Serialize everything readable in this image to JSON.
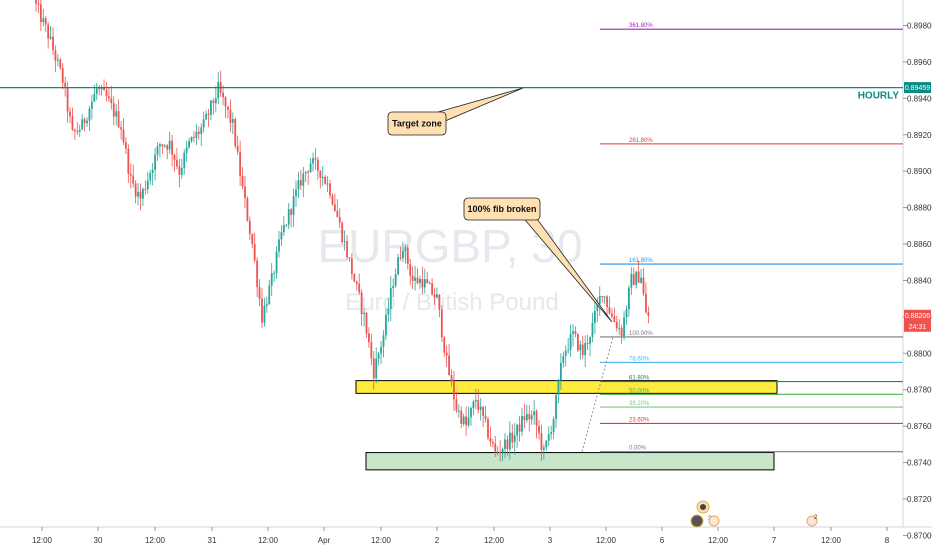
{
  "symbol_watermark": "EURGBP, 30",
  "description_watermark": "Euro / British Pound",
  "colors": {
    "up": "#26a69a",
    "down": "#ef5350",
    "resistance": "#0a8a85",
    "fib_3618": "#9c27b0",
    "fib_2618": "#e53935",
    "fib_1618": "#2196f3",
    "fib_100": "#787b86",
    "fib_786": "#4fb6e6",
    "fib_618": "#1b8a5a",
    "fib_50": "#4caf50",
    "fib_382": "#81c784",
    "fib_236": "#e53935",
    "fib_0": "#787b86",
    "yellow_zone": "#ffeb3b",
    "green_zone": "#c8e6c9",
    "callout_fill": "#ffe0b2",
    "price_badge": "#ef5350"
  },
  "price_axis": {
    "ticks": [
      "0.89800",
      "0.89600",
      "0.89400",
      "0.89200",
      "0.89000",
      "0.88800",
      "0.88600",
      "0.88400",
      "0.88200",
      "0.88000",
      "0.87800",
      "0.87600",
      "0.87400",
      "0.87200",
      "0.87000"
    ],
    "resistance_label": "0.89459",
    "current_label": "0.88206",
    "countdown": "24:31"
  },
  "time_axis": {
    "labels": [
      "12:00",
      "30",
      "12:00",
      "31",
      "12:00",
      "Apr",
      "12:00",
      "2",
      "12:00",
      "3",
      "12:00",
      "6",
      "12:00",
      "7",
      "12:00",
      "8"
    ]
  },
  "resistance": {
    "label": "HOURLY",
    "price": 0.89459
  },
  "fib_levels": [
    {
      "label": "361.80%",
      "price": 0.8978,
      "color_key": "fib_3618"
    },
    {
      "label": "261.80%",
      "price": 0.8915,
      "color_key": "fib_2618"
    },
    {
      "label": "161.80%",
      "price": 0.8849,
      "color_key": "fib_1618"
    },
    {
      "label": "100.00%",
      "price": 0.8809,
      "color_key": "fib_100"
    },
    {
      "label": "78.60%",
      "price": 0.8795,
      "color_key": "fib_786"
    },
    {
      "label": "61.80%",
      "price": 0.87845,
      "color_key": "fib_618"
    },
    {
      "label": "50.00%",
      "price": 0.87775,
      "color_key": "fib_50"
    },
    {
      "label": "38.20%",
      "price": 0.87705,
      "color_key": "fib_382"
    },
    {
      "label": "23.60%",
      "price": 0.87615,
      "color_key": "fib_236"
    },
    {
      "label": "0.00%",
      "price": 0.8746,
      "color_key": "fib_0"
    }
  ],
  "annotations": {
    "target": "Target zone",
    "fib_broken": "100% fib broken"
  },
  "events": {
    "earnings_count": "2"
  },
  "chart_data": {
    "type": "candlestick",
    "symbol": "EURGBP",
    "timeframe": "30",
    "ylim": [
      0.8692,
      0.8994
    ],
    "x_labels": [
      "12:00",
      "30",
      "12:00",
      "31",
      "12:00",
      "Apr",
      "12:00",
      "2",
      "12:00",
      "3",
      "12:00",
      "6",
      "12:00",
      "7",
      "12:00",
      "8"
    ],
    "path_keypoints": [
      [
        0,
        0.8994
      ],
      [
        6,
        0.8975
      ],
      [
        12,
        0.895
      ],
      [
        16,
        0.892
      ],
      [
        20,
        0.8925
      ],
      [
        26,
        0.8945
      ],
      [
        30,
        0.894
      ],
      [
        36,
        0.8925
      ],
      [
        40,
        0.8895
      ],
      [
        44,
        0.8885
      ],
      [
        48,
        0.89
      ],
      [
        52,
        0.8915
      ],
      [
        56,
        0.8915
      ],
      [
        60,
        0.89
      ],
      [
        64,
        0.8915
      ],
      [
        70,
        0.8925
      ],
      [
        76,
        0.8945
      ],
      [
        82,
        0.8925
      ],
      [
        86,
        0.889
      ],
      [
        90,
        0.886
      ],
      [
        94,
        0.882
      ],
      [
        98,
        0.884
      ],
      [
        102,
        0.8865
      ],
      [
        106,
        0.888
      ],
      [
        110,
        0.8895
      ],
      [
        114,
        0.8905
      ],
      [
        118,
        0.89
      ],
      [
        122,
        0.889
      ],
      [
        126,
        0.887
      ],
      [
        130,
        0.885
      ],
      [
        136,
        0.882
      ],
      [
        140,
        0.879
      ],
      [
        144,
        0.881
      ],
      [
        148,
        0.884
      ],
      [
        152,
        0.886
      ],
      [
        156,
        0.884
      ],
      [
        160,
        0.884
      ],
      [
        166,
        0.883
      ],
      [
        170,
        0.8795
      ],
      [
        174,
        0.877
      ],
      [
        178,
        0.876
      ],
      [
        182,
        0.8775
      ],
      [
        186,
        0.876
      ],
      [
        190,
        0.8745
      ],
      [
        194,
        0.875
      ],
      [
        198,
        0.8755
      ],
      [
        202,
        0.8765
      ],
      [
        206,
        0.8765
      ],
      [
        210,
        0.8745
      ],
      [
        214,
        0.8765
      ],
      [
        218,
        0.88
      ],
      [
        222,
        0.881
      ],
      [
        226,
        0.88
      ],
      [
        230,
        0.8815
      ],
      [
        234,
        0.8835
      ],
      [
        238,
        0.882
      ],
      [
        242,
        0.8812
      ],
      [
        246,
        0.884
      ],
      [
        250,
        0.8843
      ],
      [
        252,
        0.8821
      ]
    ],
    "current_price": 0.88206,
    "resistance_level": 0.89459
  }
}
